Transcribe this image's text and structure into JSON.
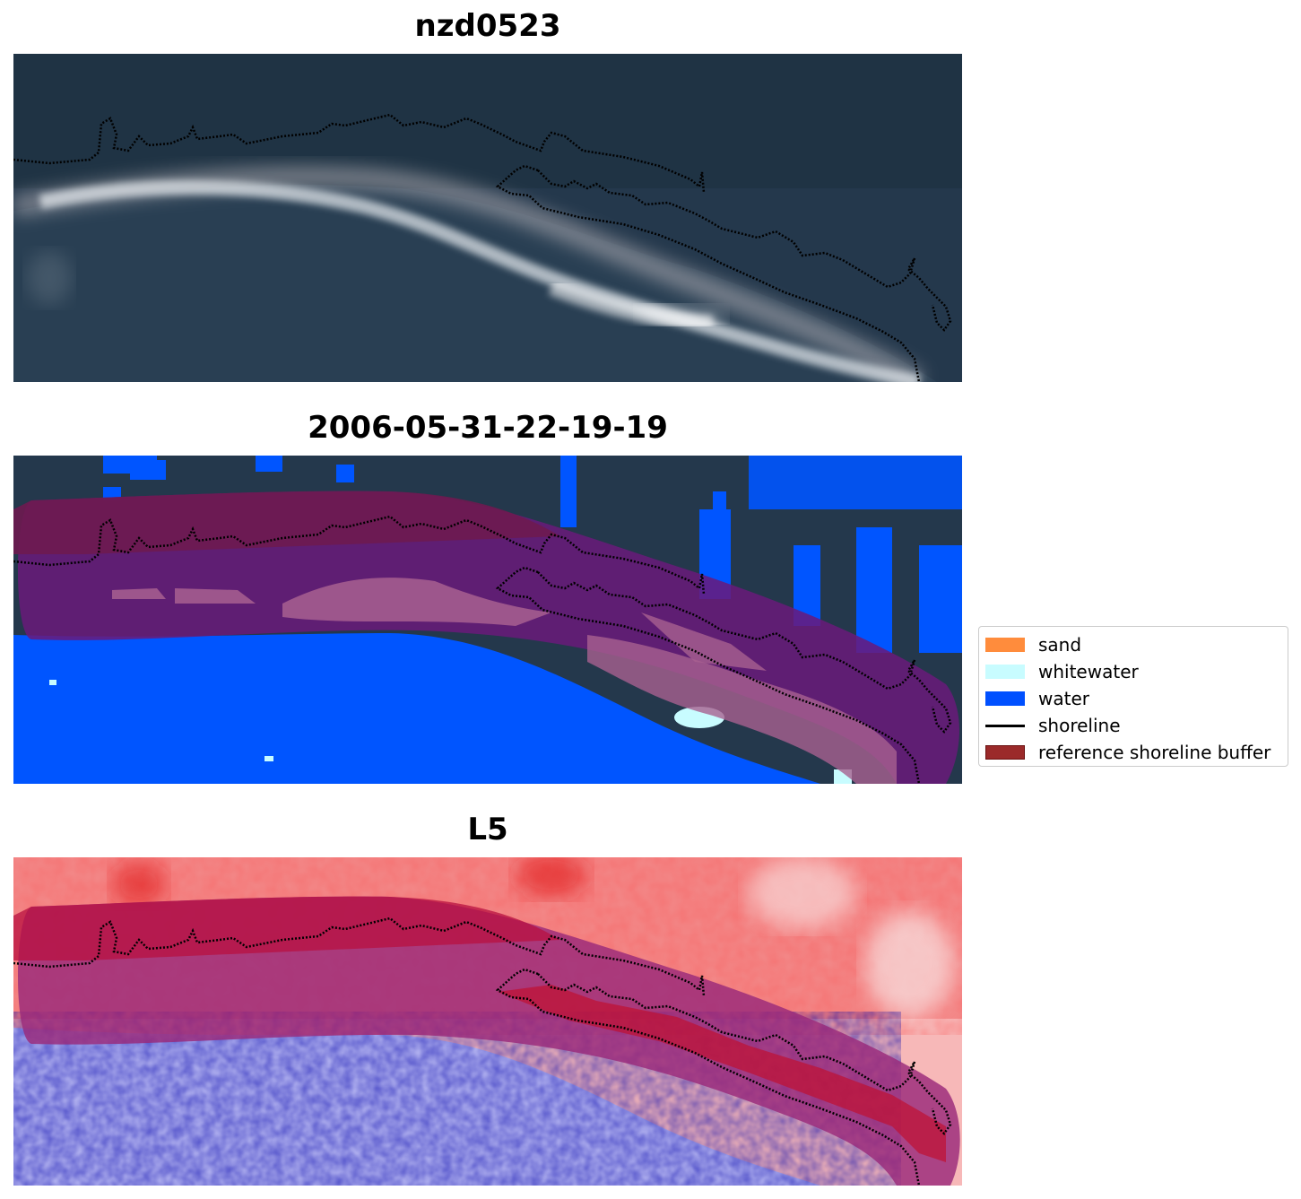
{
  "panels": [
    {
      "title": "nzd0523"
    },
    {
      "title": "2006-05-31-22-19-19"
    },
    {
      "title": "L5"
    }
  ],
  "legend": {
    "items": [
      {
        "label": "sand",
        "color": "#ff8c3c"
      },
      {
        "label": "whitewater",
        "color": "#c8fcff"
      },
      {
        "label": "water",
        "color": "#0050ff"
      },
      {
        "label": "shoreline",
        "color": "#000000"
      },
      {
        "label": "reference shoreline buffer",
        "color": "#9b2a2a"
      }
    ]
  },
  "colors": {
    "ocean_dark": "#23354a",
    "water_class": "#0055ff",
    "buffer": "#8a1a4a",
    "index_red": "#ee2222",
    "index_blue": "#2a2aee"
  }
}
